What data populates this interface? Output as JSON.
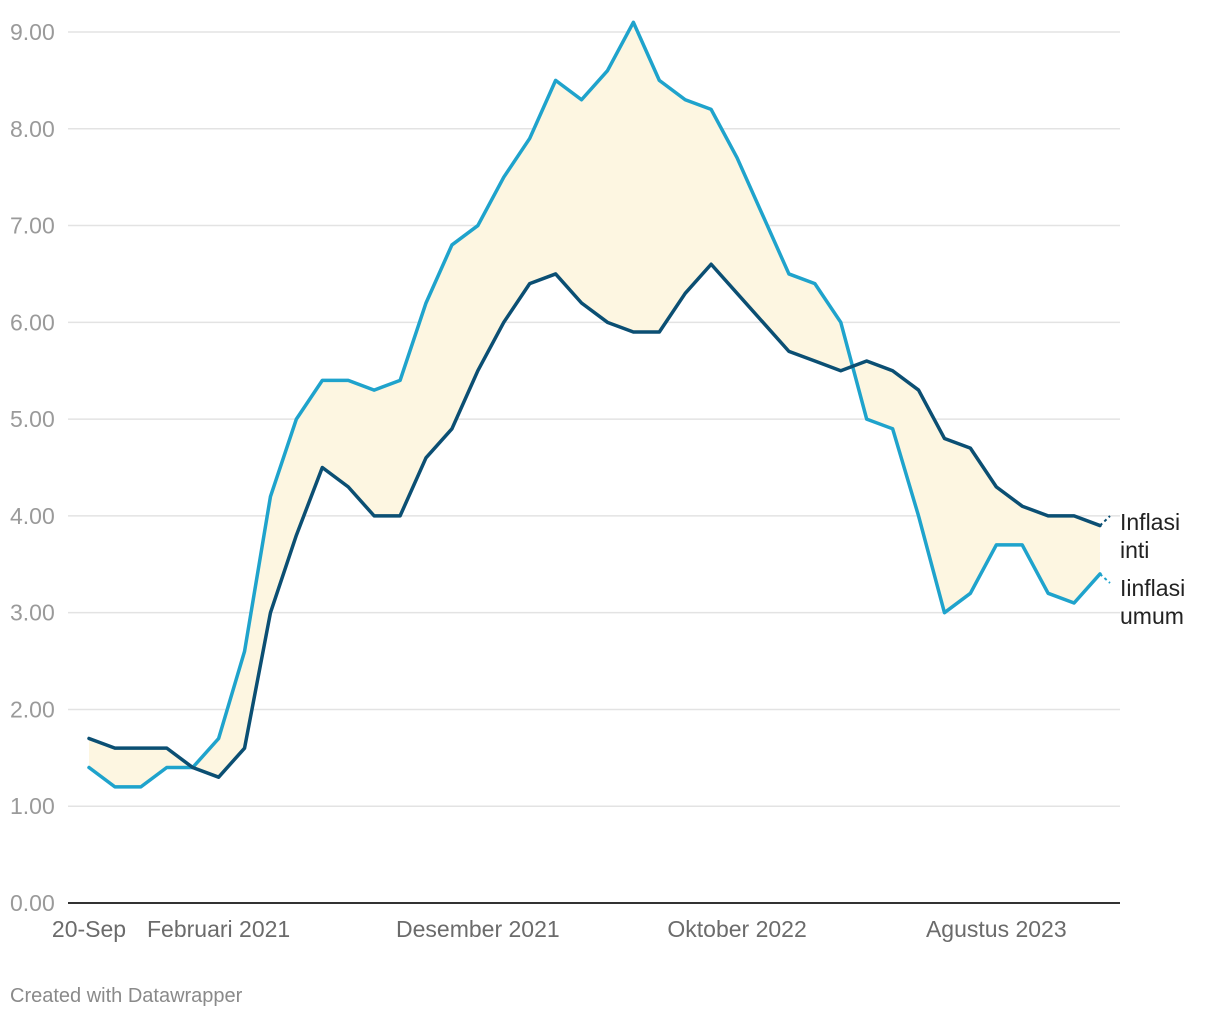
{
  "chart_data": {
    "type": "line",
    "ylim": [
      0,
      9
    ],
    "y_ticks": [
      "0.00",
      "1.00",
      "2.00",
      "3.00",
      "4.00",
      "5.00",
      "6.00",
      "7.00",
      "8.00",
      "9.00"
    ],
    "x_tick_labels": [
      {
        "label": "20-Sep",
        "index": 0
      },
      {
        "label": "Februari 2021",
        "index": 5
      },
      {
        "label": "Desember 2021",
        "index": 15
      },
      {
        "label": "Oktober 2022",
        "index": 25
      },
      {
        "label": "Agustus 2023",
        "index": 35
      }
    ],
    "grid": true,
    "area_between_series": true,
    "series": [
      {
        "name": "Iinflasi umum",
        "color": "#1fa3cc",
        "values": [
          1.4,
          1.2,
          1.2,
          1.4,
          1.4,
          1.7,
          2.6,
          4.2,
          5.0,
          5.4,
          5.4,
          5.3,
          5.4,
          6.2,
          6.8,
          7.0,
          7.5,
          7.9,
          8.5,
          8.3,
          8.6,
          9.1,
          8.5,
          8.3,
          8.2,
          7.7,
          7.1,
          6.5,
          6.4,
          6.0,
          5.0,
          4.9,
          4.0,
          3.0,
          3.2,
          3.7,
          3.7,
          3.2,
          3.1,
          3.4
        ]
      },
      {
        "name": "Inflasi inti",
        "color": "#0b4f73",
        "values": [
          1.7,
          1.6,
          1.6,
          1.6,
          1.4,
          1.3,
          1.6,
          3.0,
          3.8,
          4.5,
          4.3,
          4.0,
          4.0,
          4.6,
          4.9,
          5.5,
          6.0,
          6.4,
          6.5,
          6.2,
          6.0,
          5.9,
          5.9,
          6.3,
          6.6,
          6.3,
          6.0,
          5.7,
          5.6,
          5.5,
          5.6,
          5.5,
          5.3,
          4.8,
          4.7,
          4.3,
          4.1,
          4.0,
          4.0,
          3.9
        ]
      }
    ],
    "area_color": "#fdf6e1",
    "series_labels": [
      {
        "line1": "Inflasi",
        "line2": "inti"
      },
      {
        "line1": "Iinflasi",
        "line2": "umum"
      }
    ]
  },
  "footer": {
    "credit": "Created with Datawrapper"
  }
}
